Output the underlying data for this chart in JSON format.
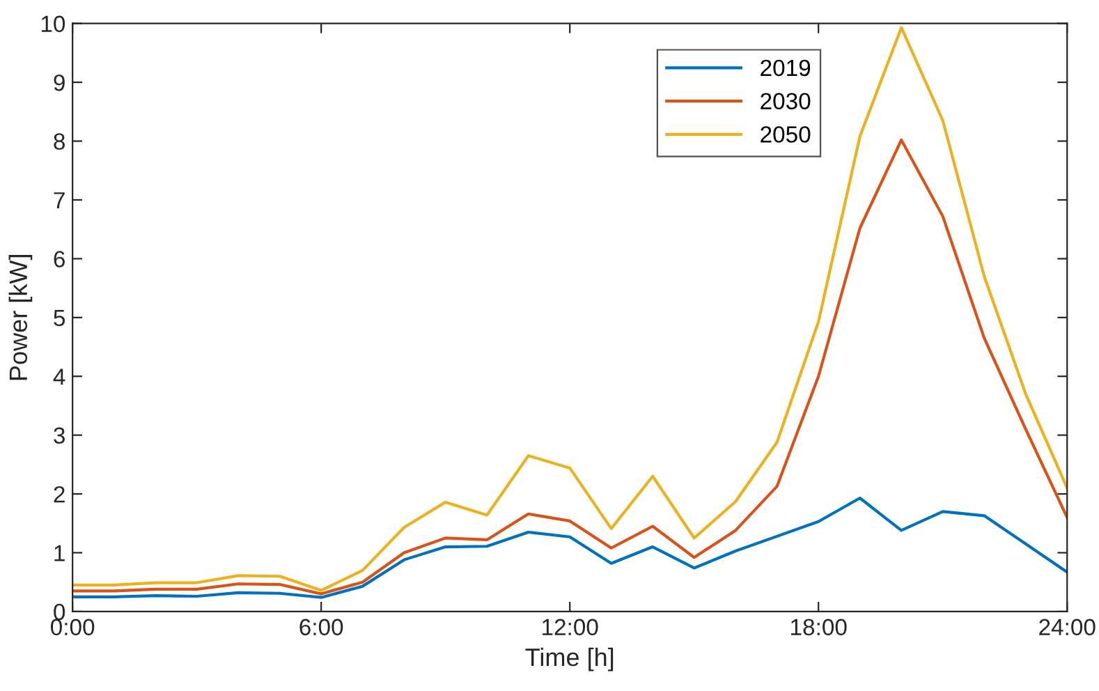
{
  "chart_data": {
    "type": "line",
    "xlabel": "Time [h]",
    "ylabel": "Power [kW]",
    "x": [
      0,
      1,
      2,
      3,
      4,
      5,
      6,
      7,
      8,
      9,
      10,
      11,
      12,
      13,
      14,
      15,
      16,
      17,
      18,
      19,
      20,
      21,
      22,
      23,
      24
    ],
    "xlim": [
      0,
      24
    ],
    "xticks": [
      {
        "value": 0,
        "label": "0:00"
      },
      {
        "value": 6,
        "label": "6:00"
      },
      {
        "value": 12,
        "label": "12:00"
      },
      {
        "value": 18,
        "label": "18:00"
      },
      {
        "value": 24,
        "label": "24:00"
      }
    ],
    "ylim": [
      0,
      10
    ],
    "yticks": [
      0,
      1,
      2,
      3,
      4,
      5,
      6,
      7,
      8,
      9,
      10
    ],
    "grid": false,
    "legend": "top",
    "marker": "none",
    "line_style": "solid",
    "series": [
      {
        "name": "2019",
        "color": "#0072bd",
        "values": [
          0.25,
          0.25,
          0.27,
          0.26,
          0.32,
          0.31,
          0.24,
          0.43,
          0.88,
          1.1,
          1.11,
          1.35,
          1.27,
          0.82,
          1.1,
          0.74,
          1.03,
          1.28,
          1.53,
          1.93,
          1.38,
          1.7,
          1.63,
          1.15,
          0.67
        ]
      },
      {
        "name": "2030",
        "color": "#d95319",
        "values": [
          0.35,
          0.35,
          0.38,
          0.38,
          0.47,
          0.46,
          0.3,
          0.5,
          1.0,
          1.25,
          1.22,
          1.66,
          1.54,
          1.08,
          1.45,
          0.92,
          1.38,
          2.13,
          4.0,
          6.52,
          8.02,
          6.72,
          4.65,
          3.1,
          1.6
        ]
      },
      {
        "name": "2050",
        "color": "#edb120",
        "values": [
          0.45,
          0.45,
          0.49,
          0.49,
          0.61,
          0.6,
          0.36,
          0.7,
          1.43,
          1.86,
          1.64,
          2.65,
          2.44,
          1.41,
          2.3,
          1.25,
          1.87,
          2.88,
          4.93,
          8.08,
          9.93,
          8.35,
          5.7,
          3.7,
          2.1
        ]
      }
    ]
  }
}
